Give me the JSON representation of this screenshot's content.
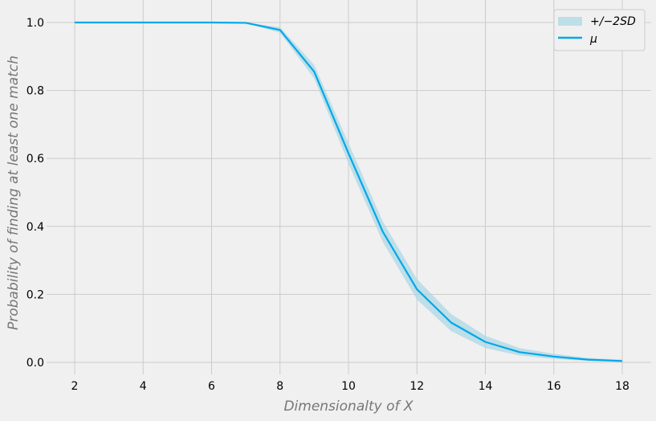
{
  "chart_data": {
    "type": "line",
    "title": "",
    "xlabel": "Dimensionalty of X",
    "ylabel": "Probability of finding at least one match",
    "x": [
      2,
      3,
      4,
      5,
      6,
      7,
      8,
      9,
      10,
      11,
      12,
      13,
      14,
      15,
      16,
      17,
      18
    ],
    "series": [
      {
        "name": "μ",
        "type": "line",
        "color": "#00a8e8",
        "values": [
          1.0,
          1.0,
          1.0,
          1.0,
          1.0,
          0.999,
          0.978,
          0.855,
          0.615,
          0.385,
          0.215,
          0.117,
          0.06,
          0.03,
          0.017,
          0.008,
          0.004
        ]
      },
      {
        "name": "+/−2SD",
        "type": "band",
        "color": "#add8e6",
        "lower": [
          1.0,
          1.0,
          1.0,
          1.0,
          1.0,
          0.998,
          0.97,
          0.835,
          0.585,
          0.355,
          0.185,
          0.092,
          0.042,
          0.02,
          0.01,
          0.004,
          0.001
        ],
        "upper": [
          1.0,
          1.0,
          1.0,
          1.0,
          1.0,
          1.0,
          0.986,
          0.875,
          0.645,
          0.415,
          0.245,
          0.142,
          0.078,
          0.042,
          0.025,
          0.013,
          0.008
        ]
      }
    ],
    "xticks": [
      2,
      4,
      6,
      8,
      10,
      12,
      14,
      16,
      18
    ],
    "yticks": [
      0.0,
      0.2,
      0.4,
      0.6,
      0.8,
      1.0
    ],
    "ytick_labels": [
      "0.0",
      "0.2",
      "0.4",
      "0.6",
      "0.8",
      "1.0"
    ],
    "xlim": [
      1.2,
      18.8
    ],
    "ylim": [
      -0.05,
      1.05
    ],
    "grid": true,
    "legend_position": "upper right",
    "legend": [
      {
        "label": "+/−2SD",
        "kind": "patch"
      },
      {
        "label": "μ",
        "kind": "line"
      }
    ]
  },
  "labels": {
    "xlabel": "Dimensionalty of X",
    "ylabel": "Probability of finding at least one match",
    "legend_band": "+/−2SD",
    "legend_mean": "μ"
  }
}
